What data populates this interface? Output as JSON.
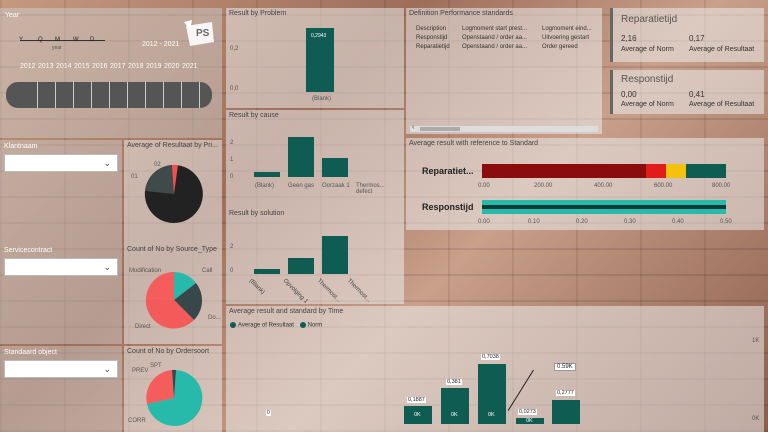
{
  "year_slicer": {
    "title": "Year",
    "hierarchy": [
      "Y",
      "Q",
      "M",
      "W",
      "D"
    ],
    "hierarchy_caption": "year",
    "range": "2012 - 2021",
    "years": [
      "2012",
      "2013",
      "2014",
      "2015",
      "2016",
      "2017",
      "2018",
      "2019",
      "2020",
      "2021"
    ]
  },
  "logo_text": "PS",
  "filters": {
    "klantnaam": "Klantnaam",
    "servicecontract": "Servicecontract",
    "standaard_object": "Standaard object"
  },
  "pie1": {
    "title": "Average of Resultaat by Pri...",
    "labels": [
      "02",
      "01"
    ]
  },
  "pie2": {
    "title": "Count of No by Source_Type",
    "labels": [
      "Modification",
      "Call",
      "Do...",
      "Direct"
    ]
  },
  "pie3": {
    "title": "Count of No by Ordersoort",
    "labels": [
      "SPT",
      "PREV",
      "CORR"
    ]
  },
  "result_by_problem": {
    "title": "Result by Problem",
    "y_ticks": [
      "0,2",
      "0,0"
    ],
    "value_label": "0,2943",
    "category": "(Blank)"
  },
  "result_by_cause": {
    "title": "Result by cause",
    "y_ticks": [
      "2",
      "1",
      "0"
    ],
    "categories": [
      "(Blank)",
      "Geen gas",
      "Oorzaak 1",
      "Thermos... defect"
    ]
  },
  "result_by_solution": {
    "title": "Result by solution",
    "y_ticks": [
      "2",
      "0"
    ],
    "categories": [
      "(Blank)",
      "Opvolging 1",
      "Thermost...",
      "Thermost..."
    ]
  },
  "definition_table": {
    "title": "Definition Performance standards",
    "headers": [
      "Description",
      "Logmoment start prest...",
      "Logmoment eind..."
    ],
    "rows": [
      [
        "Responstijd",
        "Openstaand / order aa...",
        "Uitvoering gestart"
      ],
      [
        "Reparatietijd",
        "Openstaand / order aa...",
        "Order gereed"
      ]
    ]
  },
  "kpi_reparatie": {
    "title": "Reparatietijd",
    "v1": "2,16",
    "v2": "0,17",
    "c1": "Average of Norm",
    "c2": "Average of Resultaat"
  },
  "kpi_respons": {
    "title": "Responstijd",
    "v1": "0,00",
    "v2": "0,41",
    "c1": "Average of Norm",
    "c2": "Average of Resultaat"
  },
  "standard_chart": {
    "title": "Average result with reference to Standard",
    "row1": "Reparatiet...",
    "row1_ticks": [
      "0.00",
      "200.00",
      "400.00",
      "600.00",
      "800.00"
    ],
    "row2": "Responstijd",
    "row2_ticks": [
      "0.00",
      "0.10",
      "0.20",
      "0.30",
      "0.40",
      "0.50"
    ]
  },
  "time_chart": {
    "title": "Average result and standard by Time",
    "legend1": "Average of Resultaat",
    "legend2": "Norm",
    "y_right": [
      "1K",
      "0K"
    ],
    "bar_labels": [
      "0,1887",
      "0,381",
      "0,7038",
      "0,0273",
      "0,2777"
    ],
    "value_label": "0",
    "k_labels": [
      "0K",
      "0K",
      "0K",
      "0K"
    ],
    "callout": "0.59K"
  }
}
